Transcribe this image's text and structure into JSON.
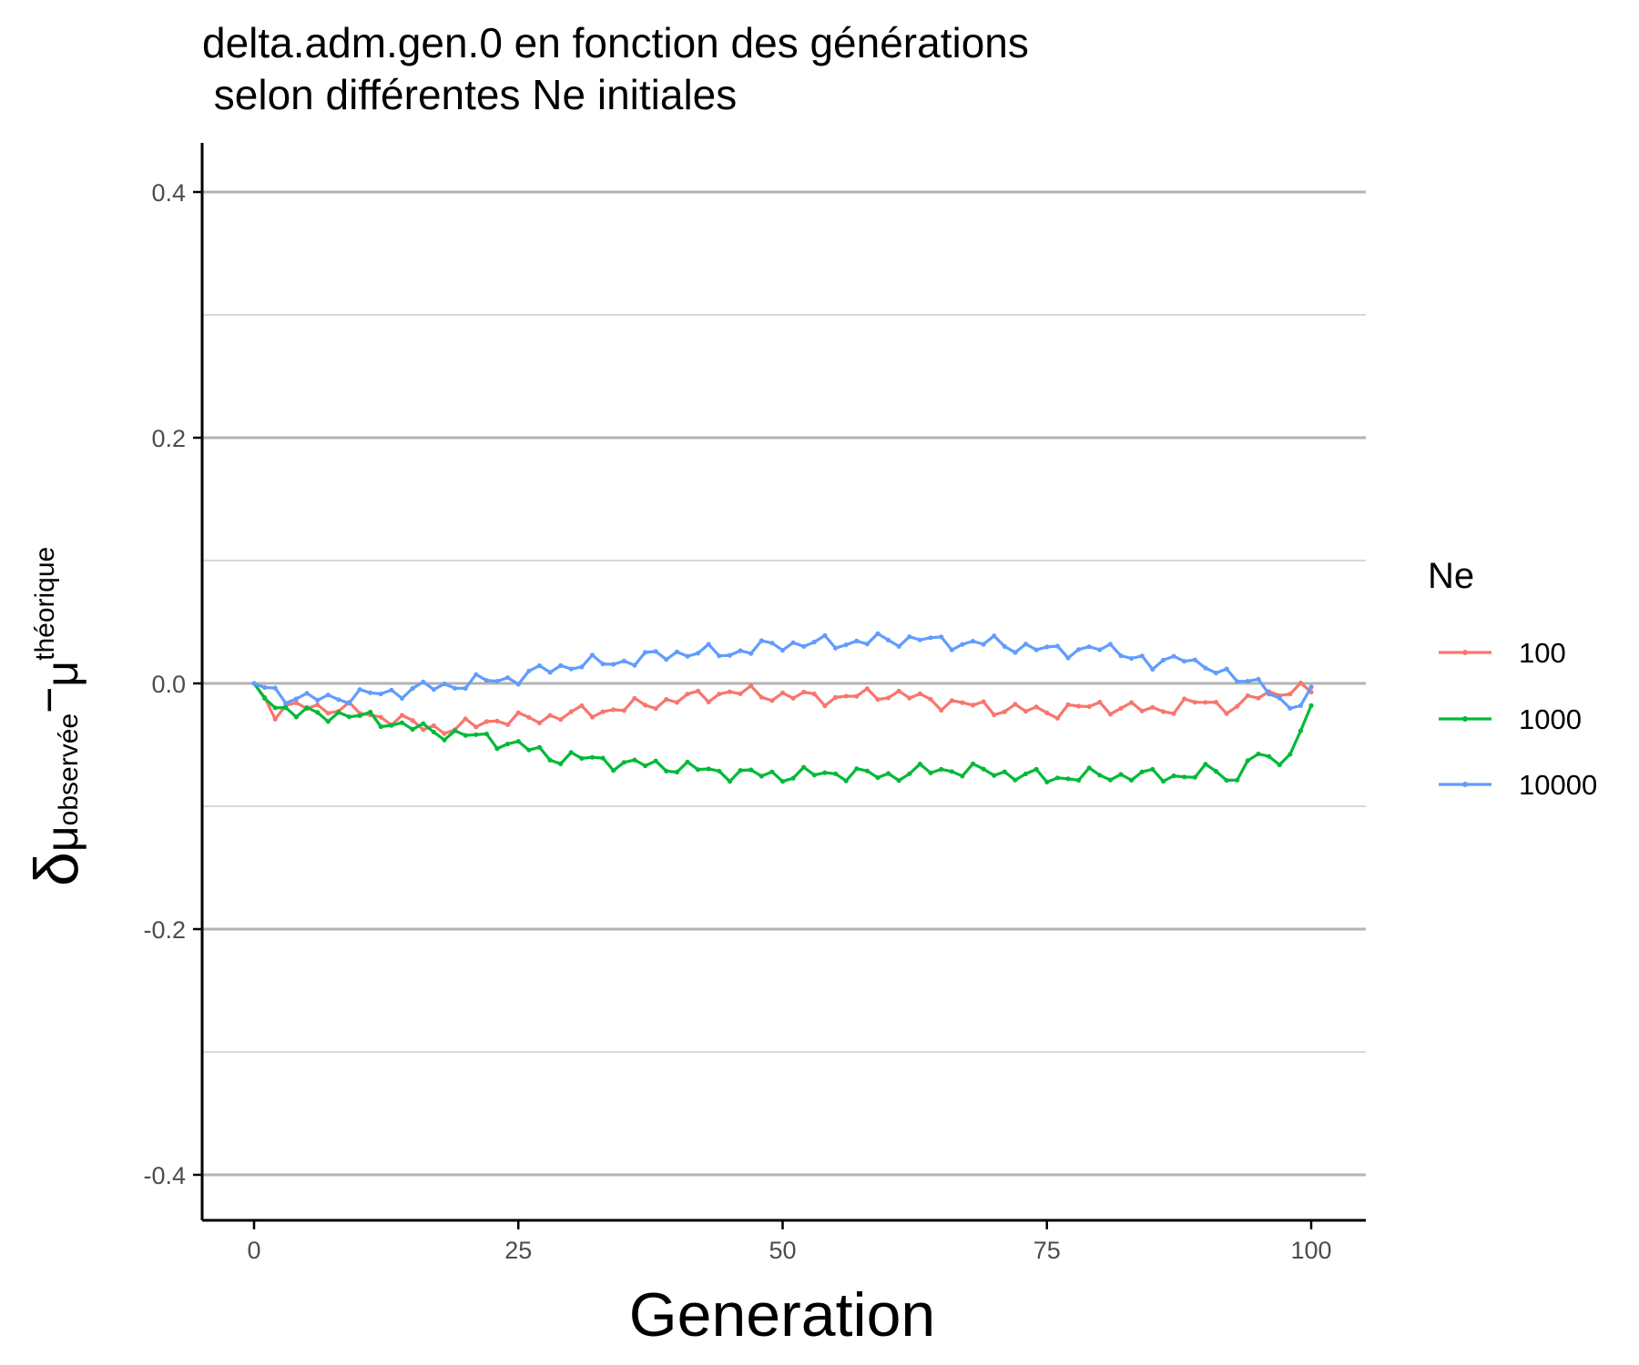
{
  "chart_data": {
    "type": "line",
    "title": "delta.adm.gen.0 en fonction des générations",
    "subtitle": " selon différentes Ne initiales",
    "xlabel": "Generation",
    "ylabel": {
      "main": "δ",
      "sub_mu1": "μ",
      "sub_text1": "observée",
      "minus": "−",
      "sub_mu2": "μ",
      "sub_text2": "théorique"
    },
    "xlim": [
      -10,
      105
    ],
    "ylim": [
      -0.44,
      0.44
    ],
    "x_ticks": [
      {
        "value": 0,
        "label": "0"
      },
      {
        "value": 25,
        "label": "25"
      },
      {
        "value": 50,
        "label": "50"
      },
      {
        "value": 75,
        "label": "75"
      },
      {
        "value": 100,
        "label": "100"
      }
    ],
    "y_ticks": [
      {
        "value": 0.4,
        "label": "0.4"
      },
      {
        "value": 0.2,
        "label": "0.2"
      },
      {
        "value": 0.0,
        "label": "0.0"
      },
      {
        "value": -0.2,
        "label": "-0.2"
      },
      {
        "value": -0.4,
        "label": "-0.4"
      }
    ],
    "y_minor_grid": [
      0.3,
      0.1,
      -0.1,
      -0.3
    ],
    "grid": "horizontal",
    "legend": {
      "title": "Ne",
      "position": "right"
    },
    "series": [
      {
        "name": "100",
        "color": "#F8766D",
        "points": [
          [
            0,
            0.0
          ],
          [
            2,
            -0.023
          ],
          [
            5,
            -0.018
          ],
          [
            10,
            -0.023
          ],
          [
            15,
            -0.033
          ],
          [
            19,
            -0.038
          ],
          [
            22,
            -0.03
          ],
          [
            25,
            -0.03
          ],
          [
            30,
            -0.025
          ],
          [
            35,
            -0.02
          ],
          [
            40,
            -0.013
          ],
          [
            45,
            -0.007
          ],
          [
            50,
            -0.01
          ],
          [
            55,
            -0.012
          ],
          [
            60,
            -0.008
          ],
          [
            65,
            -0.015
          ],
          [
            70,
            -0.02
          ],
          [
            75,
            -0.023
          ],
          [
            80,
            -0.018
          ],
          [
            85,
            -0.022
          ],
          [
            90,
            -0.015
          ],
          [
            93,
            -0.02
          ],
          [
            95,
            -0.01
          ],
          [
            98,
            -0.005
          ],
          [
            100,
            -0.007
          ]
        ]
      },
      {
        "name": "1000",
        "color": "#00BA38",
        "points": [
          [
            0,
            0.0
          ],
          [
            2,
            -0.017
          ],
          [
            4,
            -0.025
          ],
          [
            8,
            -0.025
          ],
          [
            12,
            -0.03
          ],
          [
            16,
            -0.038
          ],
          [
            20,
            -0.042
          ],
          [
            22,
            -0.045
          ],
          [
            25,
            -0.05
          ],
          [
            28,
            -0.06
          ],
          [
            30,
            -0.06
          ],
          [
            35,
            -0.065
          ],
          [
            40,
            -0.068
          ],
          [
            45,
            -0.073
          ],
          [
            50,
            -0.075
          ],
          [
            55,
            -0.073
          ],
          [
            60,
            -0.075
          ],
          [
            65,
            -0.07
          ],
          [
            70,
            -0.072
          ],
          [
            75,
            -0.077
          ],
          [
            80,
            -0.075
          ],
          [
            85,
            -0.075
          ],
          [
            89,
            -0.075
          ],
          [
            91,
            -0.07
          ],
          [
            93,
            -0.08
          ],
          [
            94,
            -0.06
          ],
          [
            96,
            -0.063
          ],
          [
            98,
            -0.058
          ],
          [
            100,
            -0.018
          ]
        ]
      },
      {
        "name": "10000",
        "color": "#619CFF",
        "points": [
          [
            0,
            0.0
          ],
          [
            3,
            -0.01
          ],
          [
            5,
            -0.013
          ],
          [
            10,
            -0.01
          ],
          [
            15,
            -0.005
          ],
          [
            20,
            0.0
          ],
          [
            25,
            0.005
          ],
          [
            28,
            0.012
          ],
          [
            30,
            0.015
          ],
          [
            35,
            0.018
          ],
          [
            40,
            0.025
          ],
          [
            45,
            0.025
          ],
          [
            50,
            0.032
          ],
          [
            55,
            0.033
          ],
          [
            60,
            0.035
          ],
          [
            63,
            0.037
          ],
          [
            65,
            0.033
          ],
          [
            70,
            0.033
          ],
          [
            75,
            0.027
          ],
          [
            80,
            0.028
          ],
          [
            83,
            0.025
          ],
          [
            85,
            0.012
          ],
          [
            88,
            0.025
          ],
          [
            90,
            0.01
          ],
          [
            92,
            0.008
          ],
          [
            94,
            0.005
          ],
          [
            96,
            -0.008
          ],
          [
            98,
            -0.02
          ],
          [
            100,
            -0.003
          ]
        ]
      }
    ]
  }
}
